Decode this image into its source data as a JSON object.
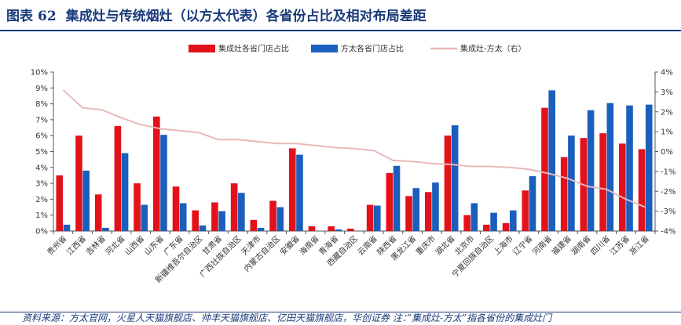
{
  "header": {
    "figure_label": "图表",
    "figure_number": "62",
    "title": "集成灶与传统烟灶（以方太代表）各省份占比及相对布局差距"
  },
  "source_note": "资料来源：方太官网，火星人天猫旗舰店、帅丰天猫旗舰店、亿田天猫旗舰店，华创证券    注：”集成灶-方太”指各省份的集成灶门",
  "chart_data": {
    "type": "bar",
    "categories": [
      "贵州省",
      "江西省",
      "吉林省",
      "河北省",
      "山西省",
      "山东省",
      "广东省",
      "新疆维吾尔自治区",
      "甘肃省",
      "广西壮族自治区",
      "天津市",
      "内蒙古自治区",
      "安徽省",
      "海南省",
      "青海省",
      "西藏自治区",
      "云南省",
      "陕西省",
      "黑龙江省",
      "重庆市",
      "湖北省",
      "北京市",
      "宁夏回族自治区",
      "上海市",
      "辽宁省",
      "河南省",
      "福建省",
      "湖南省",
      "四川省",
      "江苏省",
      "浙江省"
    ],
    "series": [
      {
        "name": "集成灶各省门店占比",
        "color": "#e3111a",
        "axis": "left",
        "values": [
          3.5,
          6.0,
          2.3,
          6.6,
          3.0,
          7.2,
          2.8,
          1.3,
          1.8,
          3.0,
          0.7,
          1.9,
          5.2,
          0.3,
          0.3,
          0.15,
          1.65,
          3.65,
          2.2,
          2.45,
          6.0,
          1.0,
          0.4,
          0.5,
          2.55,
          7.75,
          4.65,
          5.85,
          6.15,
          5.5,
          5.15
        ]
      },
      {
        "name": "方太各省门店占比",
        "color": "#1b5fbd",
        "axis": "left",
        "values": [
          0.4,
          3.8,
          0.2,
          4.9,
          1.65,
          6.05,
          1.75,
          0.35,
          1.25,
          2.4,
          0.2,
          1.5,
          4.8,
          0.0,
          0.1,
          0.0,
          1.6,
          4.1,
          2.7,
          3.05,
          6.65,
          1.75,
          1.15,
          1.3,
          3.45,
          8.85,
          6.0,
          7.6,
          8.05,
          7.9,
          7.95
        ]
      },
      {
        "name": "集成灶-方太（右）",
        "color": "#eab8b8",
        "axis": "right",
        "type": "line",
        "values": [
          3.1,
          2.2,
          2.1,
          1.7,
          1.35,
          1.15,
          1.05,
          0.95,
          0.6,
          0.6,
          0.5,
          0.4,
          0.4,
          0.3,
          0.2,
          0.15,
          0.05,
          -0.45,
          -0.5,
          -0.6,
          -0.65,
          -0.75,
          -0.75,
          -0.8,
          -0.9,
          -1.1,
          -1.35,
          -1.75,
          -1.9,
          -2.4,
          -2.8
        ]
      }
    ],
    "y_left": {
      "min": 0,
      "max": 10,
      "ticks": [
        "0%",
        "1%",
        "2%",
        "3%",
        "4%",
        "5%",
        "6%",
        "7%",
        "8%",
        "9%",
        "10%"
      ]
    },
    "y_right": {
      "min": -4,
      "max": 4,
      "ticks": [
        "-4%",
        "-3%",
        "-2%",
        "-1%",
        "0%",
        "1%",
        "2%",
        "3%",
        "4%"
      ]
    },
    "legend_position": "top",
    "grid": false
  }
}
